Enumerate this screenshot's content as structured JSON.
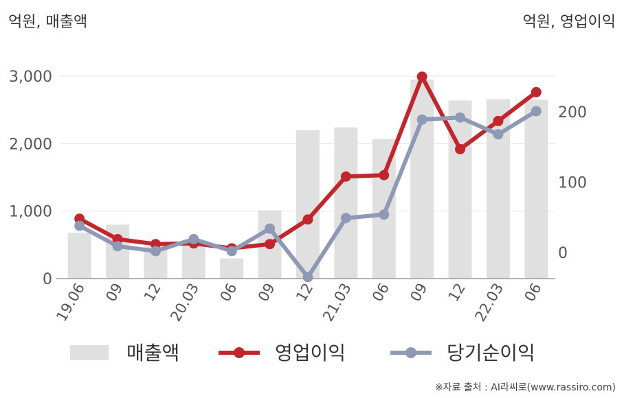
{
  "units": {
    "left": "억원, 매출액",
    "right": "억원, 영업이익"
  },
  "source": "※자료 출처 : AI라씨로(www.rassiro.com)",
  "chart_data": {
    "type": "bar",
    "categories": [
      "19.06",
      "09",
      "12",
      "20.03",
      "06",
      "09",
      "12",
      "21.03",
      "06",
      "09",
      "12",
      "22.03",
      "06"
    ],
    "series": [
      {
        "name": "매출액",
        "type": "bar",
        "axis": "left",
        "color": "#e0e0e0",
        "values": [
          680,
          800,
          480,
          560,
          300,
          1010,
          2200,
          2240,
          2070,
          2950,
          2640,
          2660,
          2650
        ]
      },
      {
        "name": "영업이익",
        "type": "line",
        "axis": "right",
        "color": "#c0272d",
        "values": [
          48,
          19,
          12,
          13,
          6,
          12,
          47,
          108,
          110,
          250,
          147,
          187,
          228
        ]
      },
      {
        "name": "당기순이익",
        "type": "line",
        "axis": "right",
        "color": "#8e9ab5",
        "values": [
          38,
          9,
          2,
          19,
          2,
          34,
          -35,
          49,
          54,
          189,
          192,
          168,
          201
        ]
      }
    ],
    "y_left": {
      "ylim": [
        0,
        3000
      ],
      "ticks": [
        0,
        1000,
        2000,
        3000
      ],
      "tick_labels": [
        "0",
        "1,000",
        "2,000",
        "3,000"
      ]
    },
    "y_right": {
      "ylim": [
        -40,
        260
      ],
      "ticks": [
        0,
        100,
        200
      ],
      "tick_labels": [
        "0",
        "100",
        "200"
      ]
    },
    "grid": true,
    "legend": "bottom"
  }
}
